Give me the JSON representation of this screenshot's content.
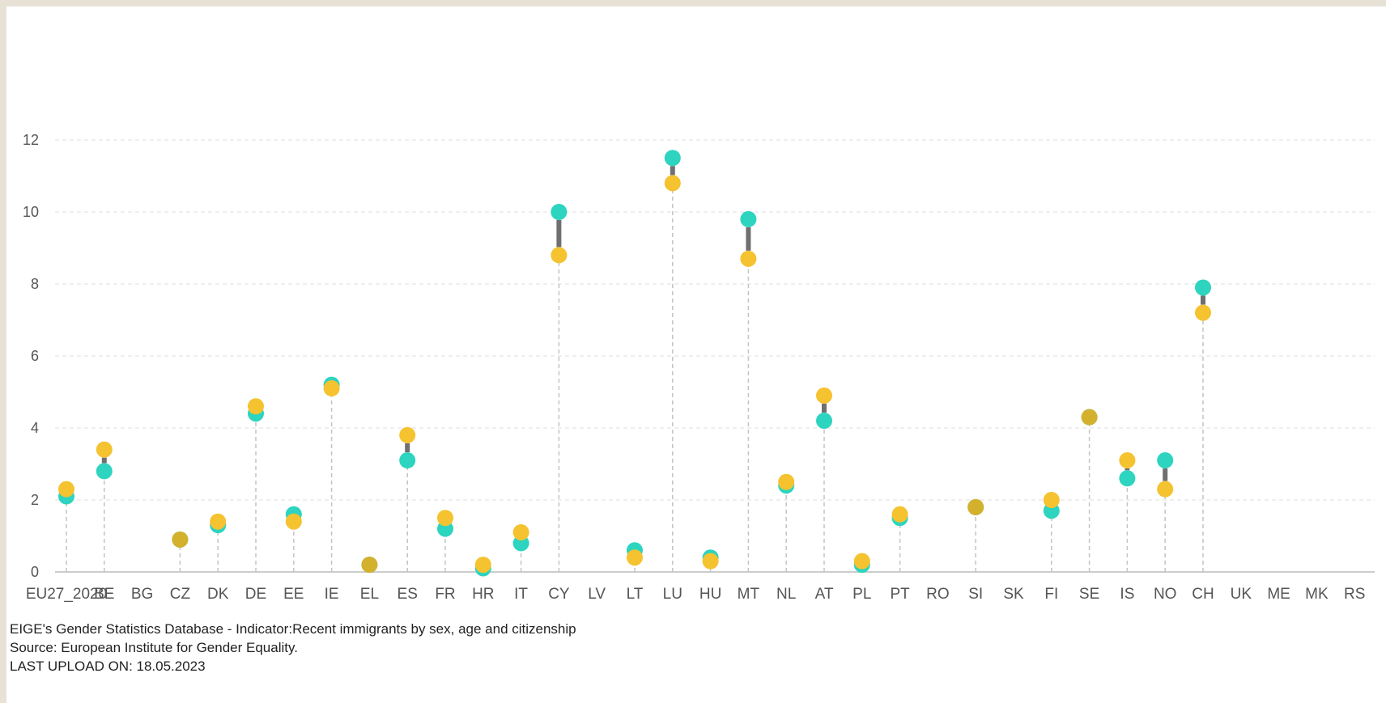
{
  "chart_data": {
    "type": "dumbbell",
    "y_ticks": [
      "0",
      "2",
      "4",
      "6",
      "8",
      "10",
      "12"
    ],
    "ylim": [
      0,
      13
    ],
    "grid": true,
    "colors": {
      "series_a": "#2dd4bf",
      "series_b": "#f5c230",
      "connector": "#707070"
    },
    "categories": [
      "EU27_2020",
      "BE",
      "BG",
      "CZ",
      "DK",
      "DE",
      "EE",
      "IE",
      "EL",
      "ES",
      "FR",
      "HR",
      "IT",
      "CY",
      "LV",
      "LT",
      "LU",
      "HU",
      "MT",
      "NL",
      "AT",
      "PL",
      "PT",
      "RO",
      "SI",
      "SK",
      "FI",
      "SE",
      "IS",
      "NO",
      "CH",
      "UK",
      "ME",
      "MK",
      "RS"
    ],
    "series": [
      {
        "values": [
          2.1,
          2.8,
          null,
          0.9,
          1.3,
          4.4,
          1.6,
          5.2,
          0.2,
          3.1,
          1.2,
          0.1,
          0.8,
          10.0,
          null,
          0.6,
          11.5,
          0.4,
          9.8,
          2.4,
          4.2,
          0.2,
          1.5,
          null,
          1.8,
          null,
          1.7,
          4.3,
          2.6,
          3.1,
          7.9,
          null,
          null,
          null,
          null
        ]
      },
      {
        "values": [
          2.3,
          3.4,
          null,
          0.9,
          1.4,
          4.6,
          1.4,
          5.1,
          0.2,
          3.8,
          1.5,
          0.2,
          1.1,
          8.8,
          null,
          0.4,
          10.8,
          0.3,
          8.7,
          2.5,
          4.9,
          0.3,
          1.6,
          null,
          1.8,
          null,
          2.0,
          4.3,
          3.1,
          2.3,
          7.2,
          null,
          null,
          null,
          null
        ]
      }
    ]
  },
  "footer": {
    "line1": "EIGE's Gender Statistics Database - Indicator:Recent immigrants by sex, age and citizenship",
    "line2": "Source: European Institute for Gender Equality.",
    "line3": "LAST UPLOAD ON: 18.05.2023"
  }
}
